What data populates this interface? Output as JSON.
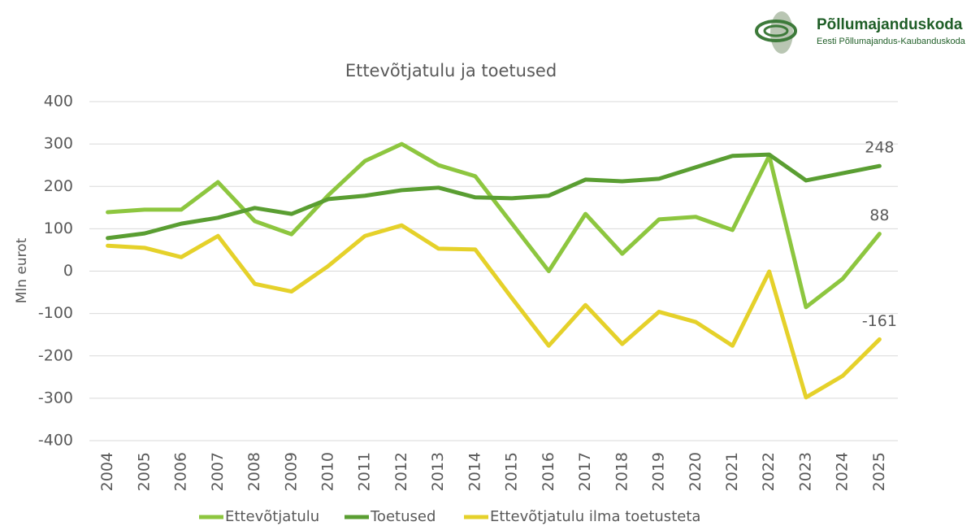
{
  "logo": {
    "name": "Põllumajanduskoda",
    "subtitle": "Eesti Põllumajandus-Kaubanduskoda"
  },
  "chart_data": {
    "type": "line",
    "title": "Ettevõtjatulu ja toetused",
    "y_label": "Mln eurot",
    "categories": [
      "2004",
      "2005",
      "2006",
      "2007",
      "2008",
      "2009",
      "2010",
      "2011",
      "2012",
      "2013",
      "2014",
      "2015",
      "2016",
      "2017",
      "2018",
      "2019",
      "2020",
      "2021",
      "2022",
      "2023",
      "2024",
      "2025"
    ],
    "series": [
      {
        "name": "Ettevõtjatulu",
        "color": "#8dc63f",
        "values": [
          139,
          145,
          145,
          210,
          118,
          87,
          179,
          260,
          300,
          250,
          224,
          112,
          0,
          135,
          41,
          122,
          128,
          97,
          272,
          -85,
          -18,
          88
        ]
      },
      {
        "name": "Toetused",
        "color": "#5a9e32",
        "values": [
          78,
          89,
          112,
          126,
          149,
          135,
          170,
          178,
          191,
          197,
          174,
          172,
          178,
          216,
          212,
          218,
          245,
          272,
          275,
          214,
          231,
          248
        ]
      },
      {
        "name": "Ettevõtjatulu ilma toetusteta",
        "color": "#e5d12a",
        "values": [
          60,
          55,
          33,
          83,
          -30,
          -48,
          12,
          83,
          108,
          53,
          51,
          -64,
          -176,
          -80,
          -172,
          -96,
          -120,
          -176,
          -1,
          -298,
          -247,
          -161
        ]
      }
    ],
    "ylim": [
      -400,
      400
    ],
    "yticks": [
      -400,
      -300,
      -200,
      -100,
      0,
      100,
      200,
      300,
      400
    ],
    "grid": true,
    "label_last": true,
    "legend": "bottom"
  }
}
